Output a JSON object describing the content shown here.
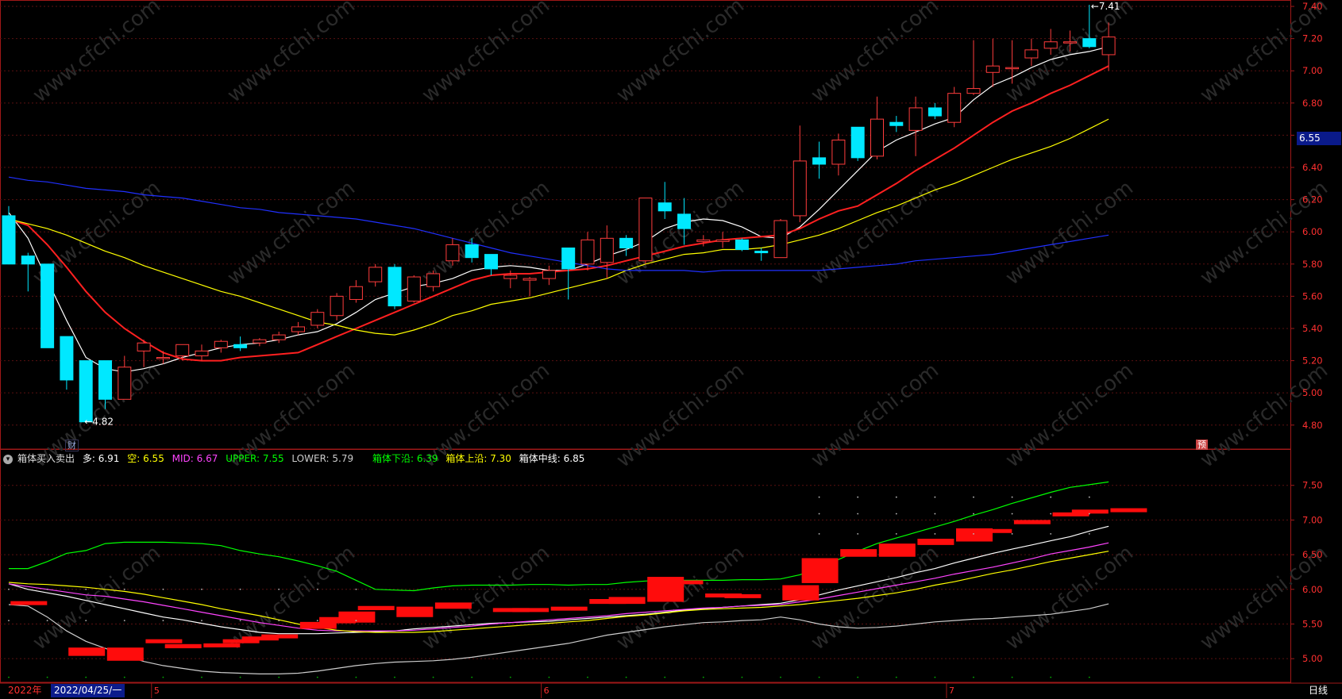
{
  "window": {
    "period": "日线",
    "year_label": "2022年",
    "cursor_date": "2022/04/25/一"
  },
  "current_price_tag": "6.55",
  "markers": {
    "low_label": "4.82",
    "high_label": "7.41",
    "cai": "财",
    "yu": "预"
  },
  "indicator": {
    "name": "箱体买入卖出",
    "duo": {
      "label": "多: ",
      "value": "6.91",
      "color": "#ffffff"
    },
    "kong": {
      "label": "空: ",
      "value": "6.55",
      "color": "#ffff00"
    },
    "mid": {
      "label": "MID: ",
      "value": "6.67",
      "color": "#ff44ff"
    },
    "upper": {
      "label": "UPPER: ",
      "value": "7.55",
      "color": "#00ff00"
    },
    "lower": {
      "label": "LOWER: ",
      "value": "5.79",
      "color": "#cccccc"
    },
    "box_low": {
      "label": "箱体下沿: ",
      "value": "6.39",
      "color": "#00ff00"
    },
    "box_high": {
      "label": "箱体上沿: ",
      "value": "7.30",
      "color": "#ffff00"
    },
    "box_mid": {
      "label": "箱体中线: ",
      "value": "6.85",
      "color": "#ffffff"
    }
  },
  "axis": {
    "price_ticks": [
      "7.40",
      "7.20",
      "7.00",
      "6.80",
      "6.60",
      "6.40",
      "6.20",
      "6.00",
      "5.80",
      "5.60",
      "5.40",
      "5.20",
      "5.00",
      "4.80"
    ],
    "indicator_ticks": [
      "7.50",
      "7.00",
      "6.50",
      "6.00",
      "5.50",
      "5.00"
    ],
    "month_labels": [
      "5",
      "6",
      "7"
    ]
  },
  "chart_data": {
    "type": "candlestick",
    "price_range": [
      4.72,
      7.42
    ],
    "indicator_range": [
      4.75,
      7.68
    ],
    "candles": [
      [
        6.1,
        5.8,
        6.16,
        5.8
      ],
      [
        5.85,
        5.8,
        5.87,
        5.63
      ],
      [
        5.8,
        5.28,
        5.8,
        5.28
      ],
      [
        5.35,
        5.08,
        5.35,
        5.02
      ],
      [
        5.2,
        4.82,
        5.2,
        4.82
      ],
      [
        5.2,
        4.96,
        5.2,
        4.9
      ],
      [
        4.96,
        5.16,
        5.23,
        4.96
      ],
      [
        5.26,
        5.31,
        5.33,
        5.16
      ],
      [
        5.22,
        5.22,
        5.26,
        5.18
      ],
      [
        5.23,
        5.3,
        5.3,
        5.2
      ],
      [
        5.23,
        5.26,
        5.3,
        5.2
      ],
      [
        5.28,
        5.32,
        5.33,
        5.25
      ],
      [
        5.3,
        5.28,
        5.35,
        5.26
      ],
      [
        5.31,
        5.33,
        5.34,
        5.29
      ],
      [
        5.33,
        5.36,
        5.38,
        5.31
      ],
      [
        5.38,
        5.41,
        5.44,
        5.36
      ],
      [
        5.42,
        5.5,
        5.52,
        5.4
      ],
      [
        5.48,
        5.6,
        5.62,
        5.45
      ],
      [
        5.58,
        5.66,
        5.7,
        5.56
      ],
      [
        5.69,
        5.78,
        5.8,
        5.66
      ],
      [
        5.78,
        5.54,
        5.8,
        5.52
      ],
      [
        5.57,
        5.72,
        5.73,
        5.56
      ],
      [
        5.66,
        5.74,
        5.76,
        5.63
      ],
      [
        5.82,
        5.92,
        5.96,
        5.79
      ],
      [
        5.92,
        5.84,
        5.96,
        5.81
      ],
      [
        5.86,
        5.77,
        5.86,
        5.73
      ],
      [
        5.71,
        5.73,
        5.76,
        5.65
      ],
      [
        5.7,
        5.71,
        5.72,
        5.6
      ],
      [
        5.71,
        5.76,
        5.79,
        5.67
      ],
      [
        5.9,
        5.77,
        5.9,
        5.58
      ],
      [
        5.8,
        5.95,
        6.0,
        5.76
      ],
      [
        5.81,
        5.96,
        6.04,
        5.71
      ],
      [
        5.96,
        5.9,
        5.98,
        5.85
      ],
      [
        5.82,
        6.21,
        6.21,
        5.8
      ],
      [
        6.18,
        6.13,
        6.31,
        6.08
      ],
      [
        6.11,
        6.02,
        6.21,
        5.92
      ],
      [
        5.94,
        5.95,
        5.98,
        5.91
      ],
      [
        5.94,
        5.95,
        6.0,
        5.9
      ],
      [
        5.95,
        5.89,
        5.96,
        5.88
      ],
      [
        5.88,
        5.87,
        5.9,
        5.82
      ],
      [
        5.84,
        6.07,
        6.08,
        5.84
      ],
      [
        6.1,
        6.44,
        6.66,
        6.06
      ],
      [
        6.46,
        6.42,
        6.56,
        6.33
      ],
      [
        6.42,
        6.57,
        6.61,
        6.35
      ],
      [
        6.65,
        6.46,
        6.65,
        6.44
      ],
      [
        6.47,
        6.7,
        6.84,
        6.45
      ],
      [
        6.68,
        6.66,
        6.72,
        6.62
      ],
      [
        6.63,
        6.77,
        6.84,
        6.47
      ],
      [
        6.77,
        6.72,
        6.8,
        6.7
      ],
      [
        6.68,
        6.86,
        6.9,
        6.65
      ],
      [
        6.86,
        6.89,
        7.19,
        6.85
      ],
      [
        6.99,
        7.03,
        7.2,
        6.9
      ],
      [
        7.02,
        7.02,
        7.19,
        6.92
      ],
      [
        7.08,
        7.13,
        7.2,
        7.03
      ],
      [
        7.14,
        7.18,
        7.26,
        7.1
      ],
      [
        7.18,
        7.18,
        7.25,
        7.12
      ],
      [
        7.2,
        7.15,
        7.41,
        7.14
      ],
      [
        7.1,
        7.21,
        7.3,
        7.0
      ]
    ],
    "series": [
      {
        "color": "#ffffff",
        "values": [
          6.12,
          5.96,
          5.7,
          5.45,
          5.22,
          5.15,
          5.13,
          5.15,
          5.18,
          5.22,
          5.25,
          5.28,
          5.3,
          5.31,
          5.33,
          5.36,
          5.38,
          5.43,
          5.5,
          5.58,
          5.62,
          5.66,
          5.68,
          5.71,
          5.76,
          5.78,
          5.79,
          5.78,
          5.76,
          5.76,
          5.8,
          5.85,
          5.89,
          5.94,
          6.02,
          6.06,
          6.08,
          6.07,
          6.03,
          5.97,
          5.96,
          6.03,
          6.14,
          6.26,
          6.38,
          6.5,
          6.57,
          6.62,
          6.67,
          6.71,
          6.82,
          6.91,
          6.96,
          7.02,
          7.07,
          7.1,
          7.12,
          7.15
        ]
      },
      {
        "color": "#ff2020",
        "values": [
          6.08,
          6.04,
          5.92,
          5.78,
          5.63,
          5.5,
          5.4,
          5.32,
          5.25,
          5.21,
          5.2,
          5.2,
          5.22,
          5.23,
          5.24,
          5.25,
          5.3,
          5.35,
          5.4,
          5.45,
          5.5,
          5.55,
          5.6,
          5.65,
          5.7,
          5.73,
          5.74,
          5.74,
          5.75,
          5.76,
          5.77,
          5.79,
          5.82,
          5.85,
          5.88,
          5.91,
          5.93,
          5.95,
          5.96,
          5.97,
          5.98,
          6.02,
          6.08,
          6.13,
          6.16,
          6.23,
          6.3,
          6.38,
          6.45,
          6.52,
          6.6,
          6.68,
          6.75,
          6.8,
          6.86,
          6.91,
          6.97,
          7.03
        ]
      },
      {
        "color": "#ffff00",
        "values": [
          6.08,
          6.05,
          6.02,
          5.98,
          5.93,
          5.88,
          5.84,
          5.79,
          5.75,
          5.71,
          5.67,
          5.63,
          5.6,
          5.56,
          5.52,
          5.48,
          5.44,
          5.42,
          5.39,
          5.37,
          5.36,
          5.39,
          5.43,
          5.48,
          5.51,
          5.55,
          5.57,
          5.59,
          5.62,
          5.65,
          5.68,
          5.71,
          5.76,
          5.8,
          5.83,
          5.86,
          5.87,
          5.89,
          5.89,
          5.9,
          5.92,
          5.95,
          5.98,
          6.02,
          6.07,
          6.12,
          6.16,
          6.21,
          6.26,
          6.3,
          6.35,
          6.4,
          6.45,
          6.49,
          6.53,
          6.58,
          6.64,
          6.7
        ]
      },
      {
        "color": "#2030ff",
        "values": [
          6.34,
          6.32,
          6.31,
          6.29,
          6.27,
          6.26,
          6.25,
          6.23,
          6.22,
          6.21,
          6.19,
          6.17,
          6.15,
          6.14,
          6.12,
          6.11,
          6.1,
          6.09,
          6.08,
          6.06,
          6.04,
          6.02,
          5.99,
          5.96,
          5.93,
          5.9,
          5.87,
          5.85,
          5.83,
          5.81,
          5.79,
          5.77,
          5.76,
          5.76,
          5.76,
          5.76,
          5.75,
          5.76,
          5.76,
          5.76,
          5.76,
          5.76,
          5.76,
          5.77,
          5.78,
          5.79,
          5.8,
          5.82,
          5.83,
          5.84,
          5.85,
          5.86,
          5.88,
          5.9,
          5.92,
          5.94,
          5.96,
          5.98
        ]
      }
    ],
    "indicator_lines": [
      {
        "name": "UPPER",
        "color": "#00ff00",
        "values": [
          6.3,
          6.3,
          6.4,
          6.52,
          6.56,
          6.66,
          6.68,
          6.68,
          6.68,
          6.67,
          6.66,
          6.63,
          6.56,
          6.51,
          6.47,
          6.41,
          6.34,
          6.26,
          6.13,
          6.0,
          5.99,
          5.98,
          6.02,
          6.05,
          6.06,
          6.06,
          6.06,
          6.07,
          6.07,
          6.06,
          6.07,
          6.07,
          6.1,
          6.12,
          6.13,
          6.13,
          6.13,
          6.13,
          6.14,
          6.14,
          6.15,
          6.21,
          6.31,
          6.43,
          6.55,
          6.66,
          6.74,
          6.82,
          6.9,
          6.98,
          7.07,
          7.15,
          7.24,
          7.32,
          7.4,
          7.47,
          7.51,
          7.55
        ]
      },
      {
        "name": "多",
        "color": "#ffffff",
        "values": [
          6.08,
          6.0,
          5.95,
          5.9,
          5.84,
          5.78,
          5.72,
          5.66,
          5.6,
          5.56,
          5.51,
          5.46,
          5.42,
          5.38,
          5.36,
          5.36,
          5.36,
          5.37,
          5.38,
          5.39,
          5.4,
          5.43,
          5.45,
          5.47,
          5.49,
          5.51,
          5.52,
          5.53,
          5.54,
          5.56,
          5.58,
          5.6,
          5.62,
          5.64,
          5.67,
          5.7,
          5.72,
          5.74,
          5.76,
          5.78,
          5.8,
          5.85,
          5.92,
          5.99,
          6.05,
          6.11,
          6.17,
          6.24,
          6.3,
          6.38,
          6.45,
          6.52,
          6.58,
          6.64,
          6.7,
          6.76,
          6.84,
          6.91
        ]
      },
      {
        "name": "MID",
        "color": "#ff44ff",
        "values": [
          6.08,
          6.04,
          6.0,
          5.96,
          5.92,
          5.9,
          5.86,
          5.82,
          5.77,
          5.72,
          5.67,
          5.62,
          5.57,
          5.52,
          5.48,
          5.44,
          5.41,
          5.4,
          5.4,
          5.4,
          5.4,
          5.41,
          5.43,
          5.45,
          5.47,
          5.5,
          5.52,
          5.54,
          5.56,
          5.58,
          5.6,
          5.62,
          5.65,
          5.67,
          5.69,
          5.71,
          5.73,
          5.74,
          5.76,
          5.77,
          5.78,
          5.82,
          5.86,
          5.91,
          5.96,
          6.01,
          6.06,
          6.11,
          6.16,
          6.22,
          6.27,
          6.32,
          6.38,
          6.44,
          6.51,
          6.56,
          6.61,
          6.67
        ]
      },
      {
        "name": "空",
        "color": "#ffff00",
        "values": [
          6.1,
          6.08,
          6.07,
          6.05,
          6.03,
          6.0,
          5.97,
          5.93,
          5.88,
          5.83,
          5.78,
          5.72,
          5.67,
          5.62,
          5.56,
          5.5,
          5.45,
          5.41,
          5.39,
          5.38,
          5.38,
          5.38,
          5.39,
          5.41,
          5.43,
          5.45,
          5.47,
          5.49,
          5.51,
          5.53,
          5.55,
          5.58,
          5.61,
          5.63,
          5.66,
          5.69,
          5.71,
          5.72,
          5.73,
          5.74,
          5.76,
          5.78,
          5.81,
          5.84,
          5.87,
          5.91,
          5.95,
          6.0,
          6.06,
          6.11,
          6.17,
          6.23,
          6.28,
          6.34,
          6.4,
          6.45,
          6.5,
          6.55
        ]
      },
      {
        "name": "LOWER",
        "color": "#cccccc",
        "values": [
          5.78,
          5.76,
          5.6,
          5.4,
          5.25,
          5.15,
          5.05,
          4.96,
          4.9,
          4.86,
          4.82,
          4.8,
          4.79,
          4.78,
          4.78,
          4.79,
          4.82,
          4.86,
          4.9,
          4.93,
          4.95,
          4.96,
          4.97,
          4.99,
          5.02,
          5.06,
          5.1,
          5.14,
          5.18,
          5.22,
          5.28,
          5.34,
          5.38,
          5.42,
          5.46,
          5.49,
          5.52,
          5.53,
          5.55,
          5.56,
          5.6,
          5.56,
          5.5,
          5.46,
          5.44,
          5.45,
          5.47,
          5.5,
          5.53,
          5.55,
          5.57,
          5.58,
          5.6,
          5.62,
          5.64,
          5.68,
          5.72,
          5.79
        ]
      }
    ],
    "boxes": [
      [
        5.83,
        5.81
      ],
      [
        5.16,
        5.04
      ],
      [
        5.16,
        4.97
      ],
      [
        5.26,
        5.28
      ],
      [
        5.21,
        5.15
      ],
      [
        5.22,
        5.17
      ],
      [
        5.23,
        5.28
      ],
      [
        5.32,
        5.3
      ],
      [
        5.35,
        5.33
      ],
      [
        5.43,
        5.53
      ],
      [
        5.51,
        5.6
      ],
      [
        5.68,
        5.52
      ],
      [
        5.76,
        5.7
      ],
      [
        5.6,
        5.75
      ],
      [
        5.81,
        5.72
      ],
      [
        5.72,
        5.73
      ],
      [
        5.7,
        5.73
      ],
      [
        5.75,
        5.7
      ],
      [
        5.79,
        5.86
      ],
      [
        5.89,
        5.79
      ],
      [
        5.82,
        6.18
      ],
      [
        6.13,
        6.09
      ],
      [
        5.94,
        5.92
      ],
      [
        5.93,
        5.9
      ],
      [
        5.84,
        6.06
      ],
      [
        6.09,
        6.45
      ],
      [
        6.58,
        6.47
      ],
      [
        6.47,
        6.66
      ],
      [
        6.73,
        6.64
      ],
      [
        6.88,
        6.69
      ],
      [
        6.87,
        6.85
      ],
      [
        6.94,
        7.0
      ],
      [
        7.08,
        7.11
      ],
      [
        7.1,
        7.15
      ],
      [
        7.17,
        7.12
      ]
    ],
    "box_positions": [
      1,
      4,
      6,
      8,
      9,
      11,
      12,
      13,
      14,
      16,
      17,
      18,
      19,
      21,
      23,
      26,
      27,
      29,
      31,
      32,
      34,
      35,
      37,
      38,
      41,
      42,
      44,
      46,
      48,
      50,
      51,
      53,
      55,
      56,
      58
    ],
    "signal_dots_top": [
      7.33,
      7.09,
      6.8
    ],
    "signal_dots_bottom": [
      4.8
    ]
  }
}
